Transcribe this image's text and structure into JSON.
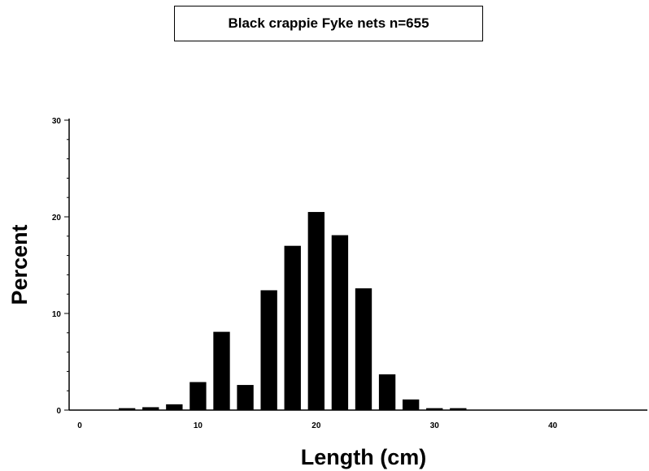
{
  "chart_data": {
    "type": "bar",
    "title": "Black crappie   Fyke nets   n=655",
    "xlabel": "Length  (cm)",
    "ylabel": "Percent",
    "xlim": [
      0,
      48
    ],
    "ylim": [
      0,
      30
    ],
    "x_ticks": [
      0,
      10,
      20,
      30,
      40
    ],
    "y_ticks": [
      0,
      10,
      20,
      30
    ],
    "x_tick_labels": [
      "0",
      "10",
      "20",
      "30",
      "40"
    ],
    "y_tick_labels": [
      "0",
      "10",
      "20",
      "30"
    ],
    "bar_width": 1.4,
    "x": [
      4,
      6,
      8,
      10,
      12,
      14,
      16,
      18,
      20,
      22,
      24,
      26,
      28,
      30,
      32
    ],
    "values": [
      0.2,
      0.3,
      0.6,
      2.9,
      8.1,
      2.6,
      12.4,
      17.0,
      20.5,
      18.1,
      12.6,
      3.7,
      1.1,
      0.2,
      0.2
    ],
    "bar_color": "#000000",
    "grid": false,
    "legend": "none"
  }
}
